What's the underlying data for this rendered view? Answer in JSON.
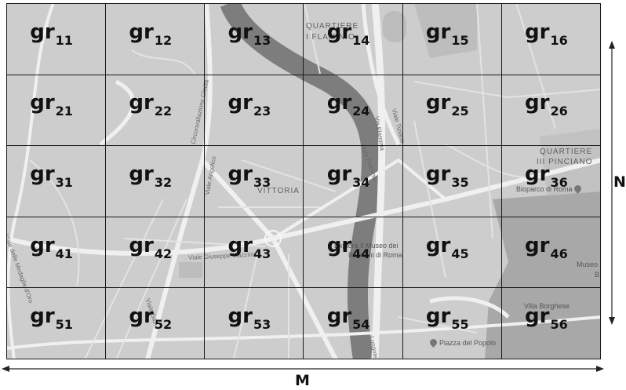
{
  "grid": {
    "rows": [
      [
        "gr",
        "11",
        "gr",
        "12",
        "gr",
        "13",
        "gr",
        "14",
        "gr",
        "15",
        "gr",
        "16"
      ]
    ],
    "cells": [
      {
        "base": "gr",
        "sub": "11"
      },
      {
        "base": "gr",
        "sub": "12"
      },
      {
        "base": "gr",
        "sub": "13"
      },
      {
        "base": "gr",
        "sub": "14"
      },
      {
        "base": "gr",
        "sub": "15"
      },
      {
        "base": "gr",
        "sub": "16"
      },
      {
        "base": "gr",
        "sub": "21"
      },
      {
        "base": "gr",
        "sub": "22"
      },
      {
        "base": "gr",
        "sub": "23"
      },
      {
        "base": "gr",
        "sub": "24"
      },
      {
        "base": "gr",
        "sub": "25"
      },
      {
        "base": "gr",
        "sub": "26"
      },
      {
        "base": "gr",
        "sub": "31"
      },
      {
        "base": "gr",
        "sub": "32"
      },
      {
        "base": "gr",
        "sub": "33"
      },
      {
        "base": "gr",
        "sub": "34"
      },
      {
        "base": "gr",
        "sub": "35"
      },
      {
        "base": "gr",
        "sub": "36"
      },
      {
        "base": "gr",
        "sub": "41"
      },
      {
        "base": "gr",
        "sub": "42"
      },
      {
        "base": "gr",
        "sub": "43"
      },
      {
        "base": "gr",
        "sub": "44"
      },
      {
        "base": "gr",
        "sub": "45"
      },
      {
        "base": "gr",
        "sub": "46"
      },
      {
        "base": "gr",
        "sub": "51"
      },
      {
        "base": "gr",
        "sub": "52"
      },
      {
        "base": "gr",
        "sub": "53"
      },
      {
        "base": "gr",
        "sub": "54"
      },
      {
        "base": "gr",
        "sub": "55"
      },
      {
        "base": "gr",
        "sub": "56"
      }
    ]
  },
  "axes": {
    "horizontal_label": "M",
    "vertical_label": "N"
  },
  "map_labels": {
    "flaminio_1": "QUARTIERE",
    "flaminio_2": "I FLAMINIO",
    "pinciano_1": "QUARTIERE",
    "pinciano_2": "III PINCIANO",
    "vittoria": "VITTORIA",
    "bioparco": "Bioparco di Roma",
    "museo_1": "Museo e",
    "museo_2": "B",
    "villa_borghese": "Villa Borghese",
    "piazza_popolo": "Piazza del Popolo",
    "museo_poi": "Explora Il Museo dei",
    "museo_poi_2": "Bambini di Roma",
    "street_clodia": "Circonvallazione Clodia",
    "street_angelico": "Viale Angelico",
    "street_flaminia": "Via Flaminia",
    "street_flaminio": "Viale Flaminio",
    "street_tiziano": "Viale Tiziano",
    "street_mazzini": "Viale Giuseppe Mazzini",
    "street_giulio": "Viale Giulio",
    "street_medaglie": "Viale delle Medaglie d'Oro",
    "street_tevere": "Lungotevere"
  },
  "colors": {
    "map_background": "#cfcfcf",
    "river": "#7e7e7e",
    "roads": "#efefef",
    "park": "#a9a9a9",
    "grid_lines": "#1a1a1a"
  }
}
